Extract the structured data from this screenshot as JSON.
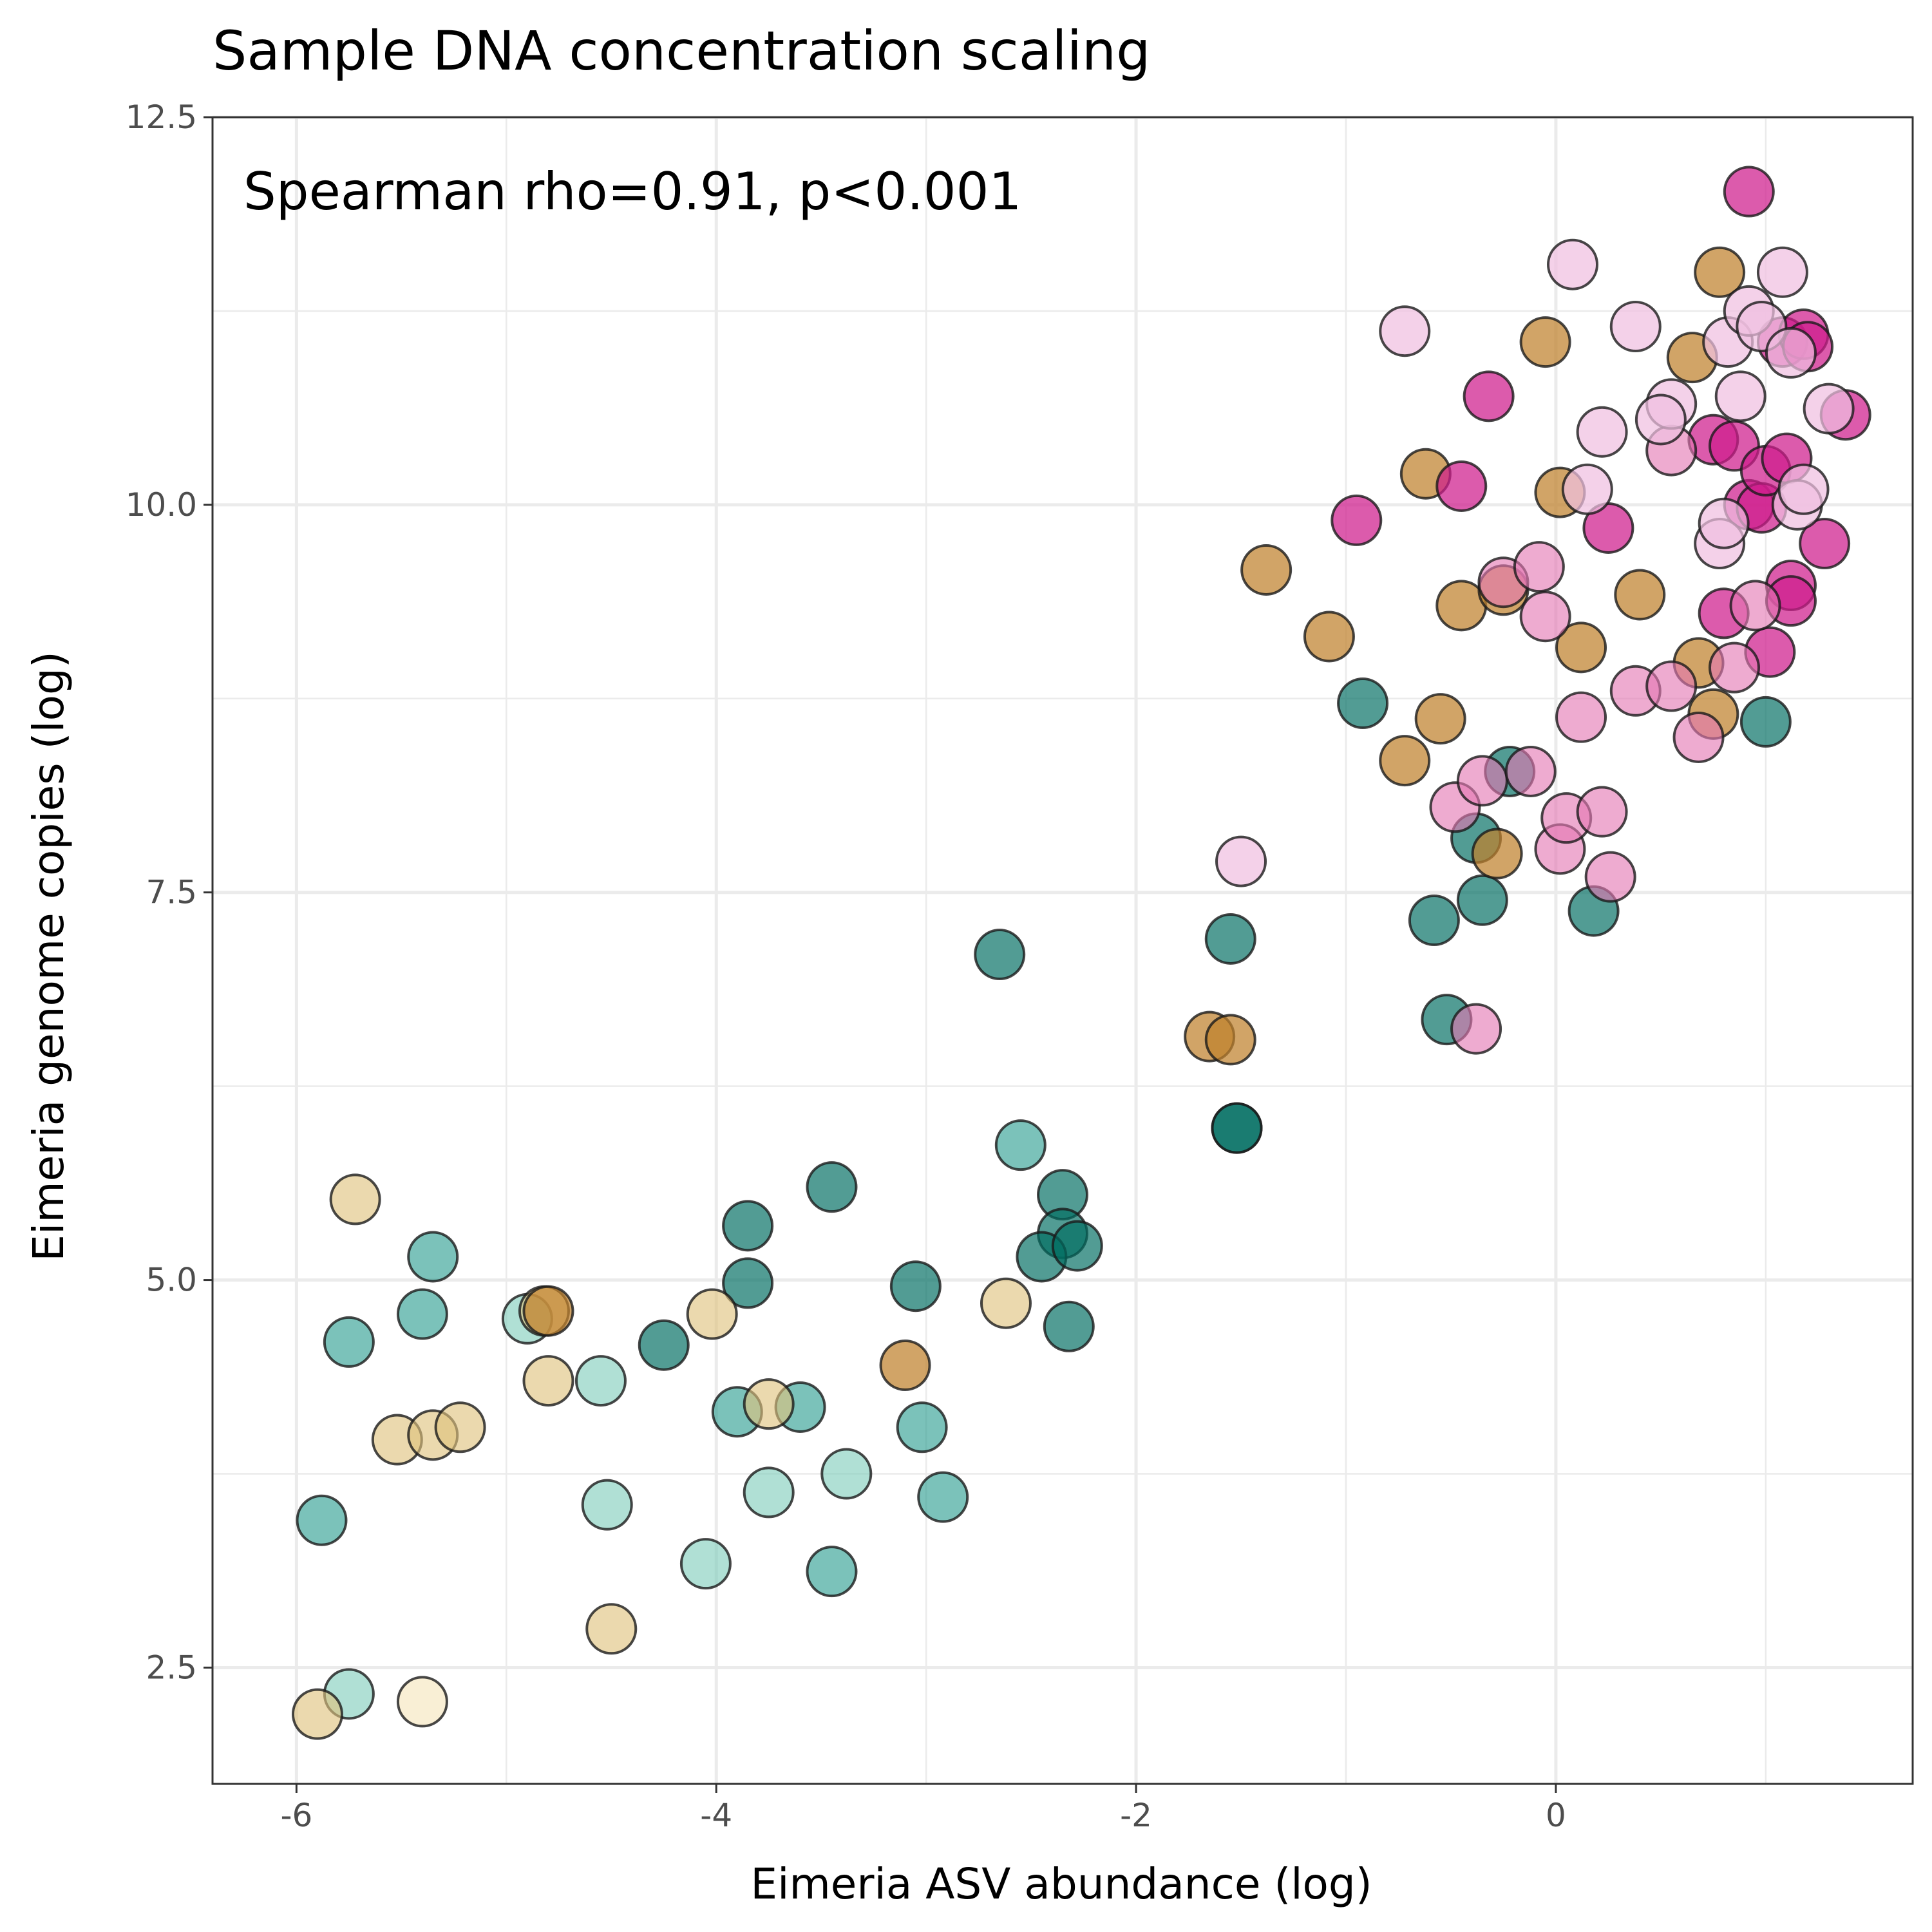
{
  "chart_data": {
    "type": "scatter",
    "title": "Sample DNA concentration scaling",
    "xlabel": "Eimeria ASV abundance (log)",
    "ylabel": "Eimeria genome copies (log)",
    "annotation": "Spearman rho=0.91, p<0.001",
    "xlim": [
      -6.4,
      1.7
    ],
    "ylim": [
      1.75,
      12.5
    ],
    "x_ticks": [
      -6,
      -4,
      -2,
      0
    ],
    "x_tick_labels": [
      "-6",
      "-4",
      "-2",
      "0"
    ],
    "y_ticks": [
      2.5,
      5.0,
      7.5,
      10.0,
      12.5
    ],
    "y_tick_labels": [
      "2.5",
      "5.0",
      "7.5",
      "10.0",
      "12.5"
    ],
    "grid": true,
    "legend": "none",
    "marker_size": 38,
    "series": [
      {
        "name": "teal-dark",
        "color": "#006d62",
        "opacity": 0.68,
        "points": [
          [
            -3.45,
            5.6
          ],
          [
            -3.85,
            5.35
          ],
          [
            -3.85,
            4.98
          ],
          [
            -4.25,
            4.58
          ],
          [
            -3.05,
            4.96
          ],
          [
            -2.65,
            7.1
          ],
          [
            -2.35,
            5.55
          ],
          [
            -2.35,
            5.3
          ],
          [
            -2.45,
            5.15
          ],
          [
            -2.28,
            5.22
          ],
          [
            -2.32,
            4.7
          ],
          [
            -1.55,
            7.2
          ],
          [
            -1.52,
            5.98
          ],
          [
            -1.52,
            5.98
          ],
          [
            -0.92,
            8.72
          ],
          [
            -0.58,
            7.32
          ],
          [
            -0.52,
            6.68
          ],
          [
            -0.38,
            7.85
          ],
          [
            -0.35,
            7.45
          ],
          [
            -0.22,
            8.28
          ],
          [
            0.18,
            7.38
          ],
          [
            1.0,
            8.6
          ]
        ]
      },
      {
        "name": "teal-mid",
        "color": "#2a9d8f",
        "opacity": 0.62,
        "points": [
          [
            -5.35,
            5.15
          ],
          [
            -5.4,
            4.78
          ],
          [
            -5.75,
            4.6
          ],
          [
            -5.88,
            3.45
          ],
          [
            -3.9,
            4.15
          ],
          [
            -3.6,
            4.18
          ],
          [
            -3.45,
            3.12
          ],
          [
            -3.02,
            4.05
          ],
          [
            -2.92,
            3.6
          ],
          [
            -2.55,
            5.87
          ]
        ]
      },
      {
        "name": "teal-light",
        "color": "#7fcdbb",
        "opacity": 0.62,
        "points": [
          [
            -4.9,
            4.75
          ],
          [
            -4.55,
            4.35
          ],
          [
            -4.52,
            3.55
          ],
          [
            -4.05,
            3.17
          ],
          [
            -3.75,
            3.63
          ],
          [
            -3.38,
            3.75
          ],
          [
            -5.75,
            2.33
          ]
        ]
      },
      {
        "name": "sand",
        "color": "#dfc27d",
        "opacity": 0.62,
        "points": [
          [
            -5.72,
            5.52
          ],
          [
            -5.52,
            3.97
          ],
          [
            -5.35,
            4.0
          ],
          [
            -5.22,
            4.05
          ],
          [
            -4.8,
            4.35
          ],
          [
            -4.82,
            4.8
          ],
          [
            -4.5,
            2.75
          ],
          [
            -4.02,
            4.78
          ],
          [
            -3.75,
            4.2
          ],
          [
            -2.62,
            4.85
          ],
          [
            -5.9,
            2.2
          ]
        ]
      },
      {
        "name": "sand-light",
        "color": "#f6e8c3",
        "opacity": 0.7,
        "points": [
          [
            -5.4,
            2.28
          ]
        ]
      },
      {
        "name": "ochre",
        "color": "#bf812d",
        "opacity": 0.72,
        "points": [
          [
            -4.8,
            4.8
          ],
          [
            -3.1,
            4.45
          ],
          [
            -1.65,
            6.57
          ],
          [
            -1.55,
            6.55
          ],
          [
            -1.38,
            9.58
          ],
          [
            -1.08,
            9.15
          ],
          [
            -0.72,
            8.35
          ],
          [
            -0.62,
            10.2
          ],
          [
            -0.55,
            8.62
          ],
          [
            -0.45,
            9.35
          ],
          [
            -0.25,
            9.45
          ],
          [
            -0.28,
            7.75
          ],
          [
            -0.05,
            11.05
          ],
          [
            0.02,
            10.08
          ],
          [
            0.12,
            9.08
          ],
          [
            0.4,
            9.42
          ],
          [
            0.65,
            10.95
          ],
          [
            0.68,
            8.98
          ],
          [
            0.75,
            8.65
          ],
          [
            0.78,
            11.5
          ]
        ]
      },
      {
        "name": "magenta",
        "color": "#ce1c8c",
        "opacity": 0.72,
        "points": [
          [
            -0.95,
            9.9
          ],
          [
            -0.32,
            10.7
          ],
          [
            -0.45,
            10.12
          ],
          [
            0.25,
            9.85
          ],
          [
            0.75,
            10.42
          ],
          [
            0.85,
            10.38
          ],
          [
            0.8,
            9.3
          ],
          [
            0.92,
            10.0
          ],
          [
            0.92,
            12.02
          ],
          [
            0.98,
            9.98
          ],
          [
            1.0,
            10.22
          ],
          [
            1.02,
            9.05
          ],
          [
            1.08,
            11.05
          ],
          [
            1.1,
            10.3
          ],
          [
            1.12,
            9.48
          ],
          [
            1.12,
            9.38
          ],
          [
            1.18,
            11.1
          ],
          [
            1.2,
            11.02
          ],
          [
            1.28,
            9.75
          ],
          [
            1.38,
            10.58
          ]
        ]
      },
      {
        "name": "pink-mid",
        "color": "#e377b3",
        "opacity": 0.62,
        "points": [
          [
            -0.38,
            6.62
          ],
          [
            -0.48,
            8.05
          ],
          [
            -0.35,
            8.22
          ],
          [
            -0.25,
            9.5
          ],
          [
            -0.12,
            8.28
          ],
          [
            -0.08,
            9.6
          ],
          [
            0.02,
            7.78
          ],
          [
            0.05,
            7.98
          ],
          [
            0.22,
            8.02
          ],
          [
            0.26,
            7.6
          ],
          [
            0.12,
            8.63
          ],
          [
            0.38,
            8.8
          ],
          [
            0.55,
            8.83
          ],
          [
            0.55,
            10.35
          ],
          [
            0.68,
            8.5
          ],
          [
            0.85,
            8.95
          ],
          [
            0.95,
            9.35
          ],
          [
            -0.05,
            9.28
          ]
        ]
      },
      {
        "name": "pink-light",
        "color": "#f0bfe0",
        "opacity": 0.72,
        "points": [
          [
            -1.5,
            7.7
          ],
          [
            -0.72,
            11.12
          ],
          [
            0.08,
            11.55
          ],
          [
            0.15,
            10.1
          ],
          [
            0.22,
            10.47
          ],
          [
            0.38,
            11.15
          ],
          [
            0.55,
            10.65
          ],
          [
            0.5,
            10.55
          ],
          [
            0.78,
            9.75
          ],
          [
            0.8,
            9.88
          ],
          [
            0.82,
            11.05
          ],
          [
            0.88,
            10.7
          ],
          [
            0.92,
            11.25
          ],
          [
            0.98,
            11.15
          ],
          [
            1.08,
            11.5
          ],
          [
            1.12,
            10.98
          ],
          [
            1.15,
            10.0
          ],
          [
            1.18,
            10.1
          ],
          [
            1.3,
            10.62
          ]
        ]
      }
    ]
  }
}
